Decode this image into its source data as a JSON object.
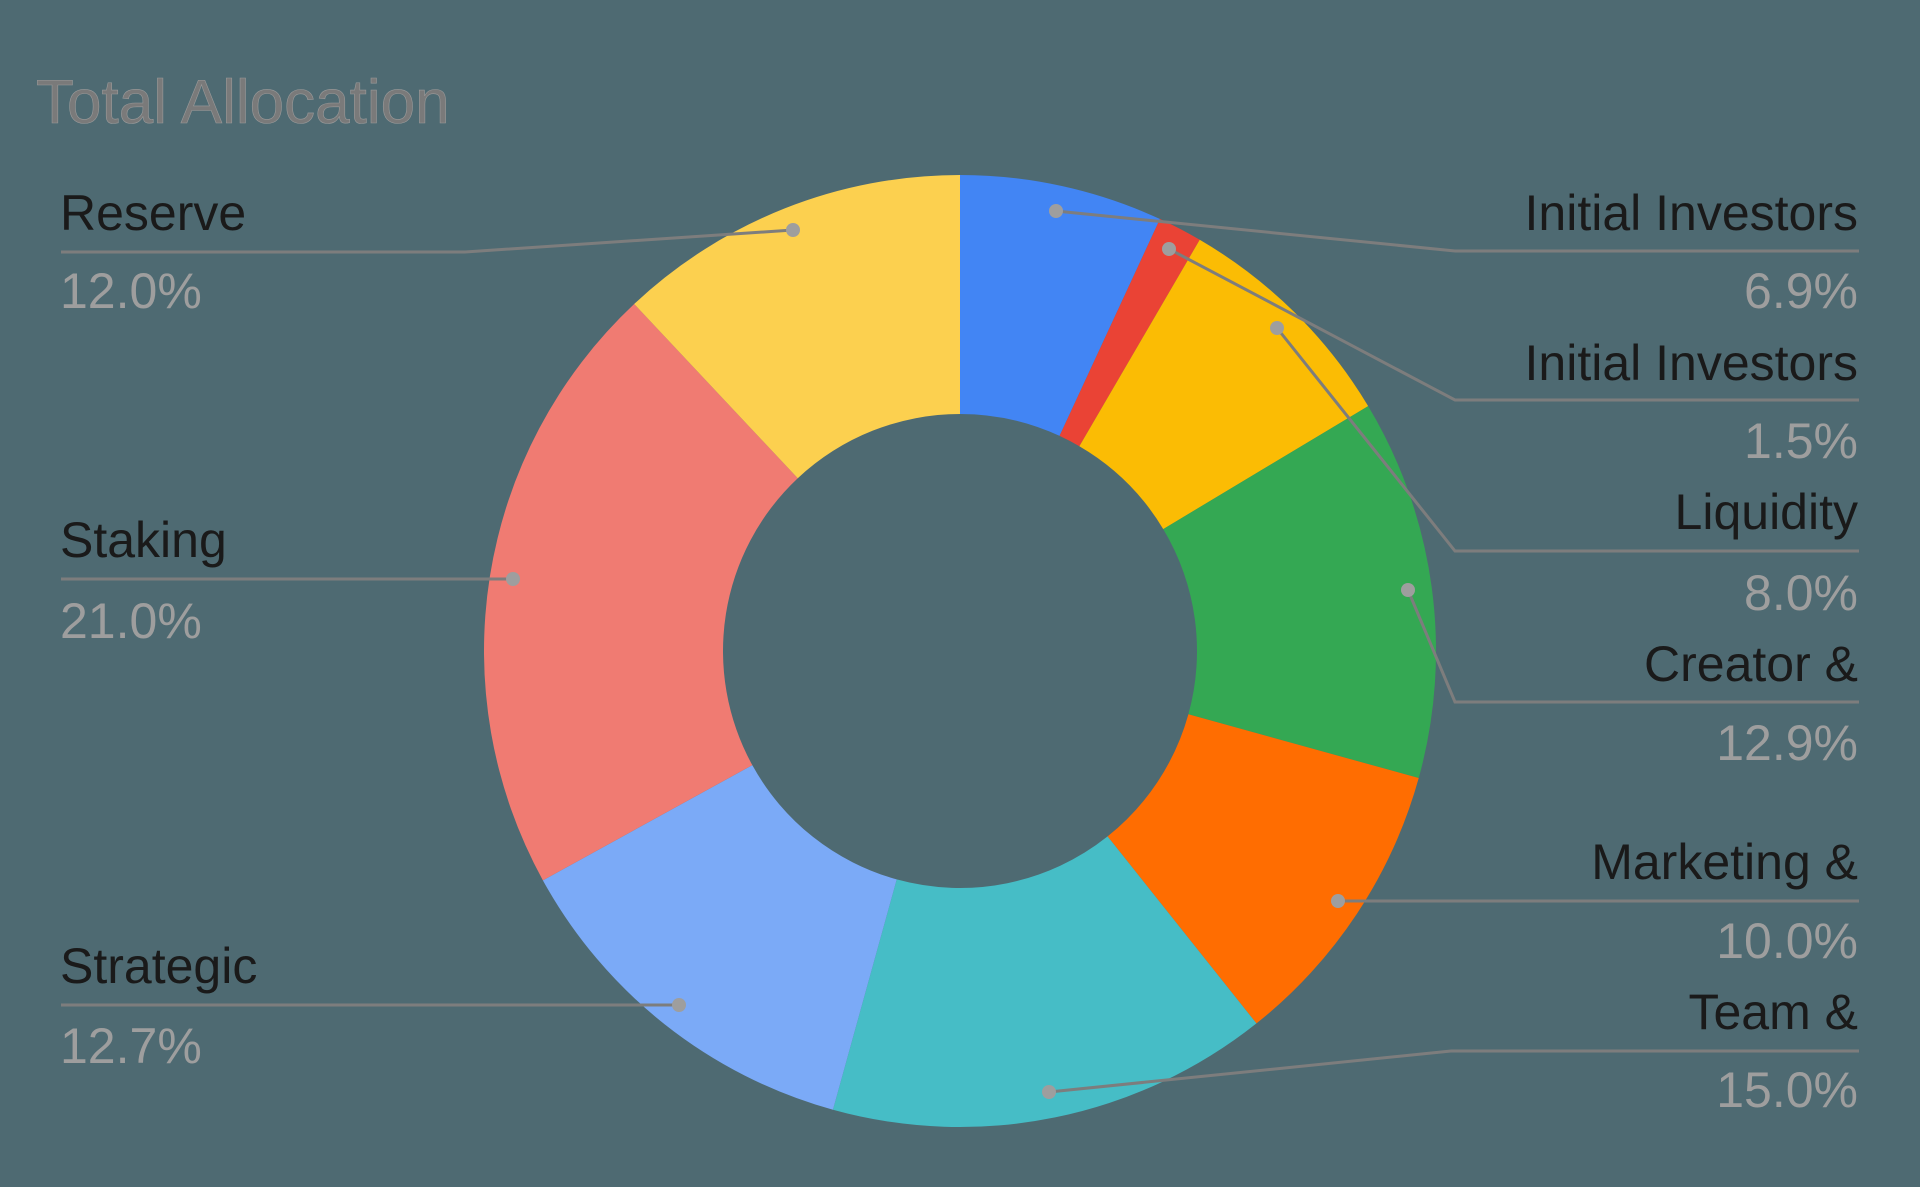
{
  "chart_data": {
    "type": "pie",
    "variant": "donut",
    "title": "Total Allocation",
    "unit": "%",
    "start_angle_deg": 0,
    "direction": "clockwise",
    "slices": [
      {
        "label": "Initial Investors",
        "value": 6.9,
        "display": "6.9%",
        "color": "#4285F4",
        "side": "right"
      },
      {
        "label": "Initial Investors",
        "value": 1.5,
        "display": "1.5%",
        "color": "#EA4335",
        "side": "right"
      },
      {
        "label": "Liquidity",
        "value": 8.0,
        "display": "8.0%",
        "color": "#FBBC04",
        "side": "right"
      },
      {
        "label": "Creator &",
        "value": 12.9,
        "display": "12.9%",
        "color": "#34A853",
        "side": "right"
      },
      {
        "label": "Marketing &",
        "value": 10.0,
        "display": "10.0%",
        "color": "#FF6D01",
        "side": "right"
      },
      {
        "label": "Team &",
        "value": 15.0,
        "display": "15.0%",
        "color": "#46BDC6",
        "side": "right"
      },
      {
        "label": "Strategic",
        "value": 12.7,
        "display": "12.7%",
        "color": "#7BAAF7",
        "side": "left"
      },
      {
        "label": "Staking",
        "value": 21.0,
        "display": "21.0%",
        "color": "#F07B72",
        "side": "left"
      },
      {
        "label": "Reserve",
        "value": 12.0,
        "display": "12.0%",
        "color": "#FCD04F",
        "side": "left"
      }
    ],
    "legend_position": "labeled-leaders"
  },
  "style": {
    "background": "#4E6A72",
    "title_color": "#7a7a7a",
    "label_color": "#1a1a1a",
    "pct_color": "#9e9e9e",
    "leader_color": "#7d7d7d"
  }
}
